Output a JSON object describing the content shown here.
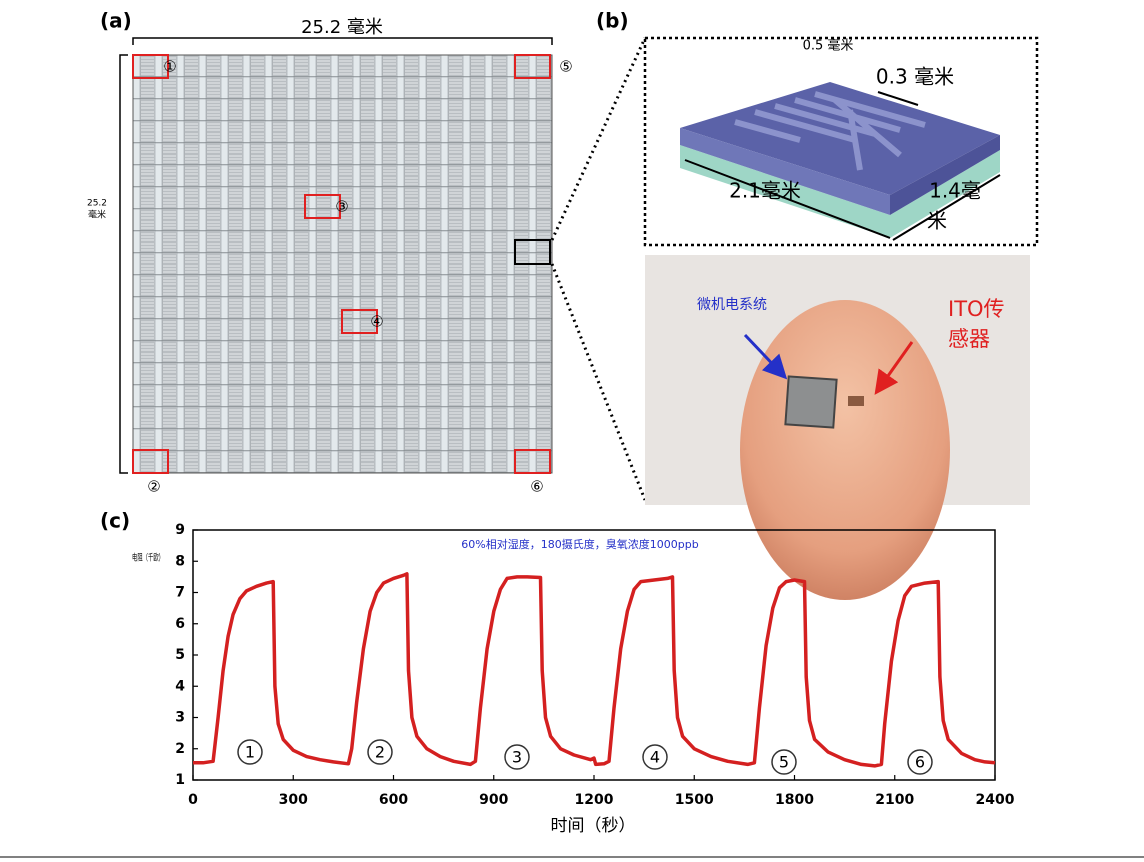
{
  "panel_a": {
    "label": "(a)",
    "width_label": "25.2 毫米",
    "height_label": [
      "25.2",
      "毫米"
    ],
    "markers": [
      "①",
      "②",
      "③",
      "④",
      "⑤",
      "⑥"
    ]
  },
  "panel_b": {
    "label": "(b)",
    "dims": [
      "0.5 毫米",
      "0.3 毫米",
      "2.1毫米"
    ],
    "depth_label": [
      "1.4毫",
      "米"
    ],
    "mems_label": "微机电系统",
    "ito_label": [
      "ITO传",
      "感器"
    ]
  },
  "chart_data": {
    "type": "line",
    "panel_label": "(c)",
    "title": "60%相对湿度，180摄氏度，臭氧浓度1000ppb",
    "y_label": "电阻（千欧）",
    "x_label": "时间（秒）",
    "xlim": [
      0,
      2400
    ],
    "xticks": [
      0,
      300,
      600,
      900,
      1200,
      1500,
      1800,
      2100,
      2400
    ],
    "ylim": [
      1,
      9
    ],
    "yticks": [
      1,
      2,
      3,
      4,
      5,
      6,
      7,
      8,
      9
    ],
    "annotations": [
      "1",
      "2",
      "3",
      "4",
      "5",
      "6"
    ],
    "series": [
      {
        "name": "电阻",
        "color": "#d42020",
        "x": [
          0,
          30,
          60,
          75,
          90,
          105,
          120,
          140,
          160,
          190,
          220,
          240,
          245,
          255,
          270,
          300,
          340,
          380,
          420,
          465,
          475,
          490,
          510,
          530,
          550,
          570,
          600,
          630,
          640,
          645,
          655,
          670,
          700,
          740,
          780,
          830,
          845,
          860,
          880,
          900,
          920,
          940,
          970,
          1000,
          1040,
          1045,
          1055,
          1070,
          1100,
          1140,
          1190,
          1200,
          1205,
          1230,
          1245,
          1260,
          1280,
          1300,
          1320,
          1340,
          1380,
          1420,
          1435,
          1440,
          1450,
          1465,
          1500,
          1550,
          1600,
          1660,
          1680,
          1695,
          1715,
          1735,
          1755,
          1775,
          1800,
          1830,
          1835,
          1845,
          1860,
          1900,
          1950,
          2000,
          2040,
          2060,
          2070,
          2090,
          2110,
          2130,
          2150,
          2190,
          2230,
          2235,
          2245,
          2260,
          2300,
          2340,
          2370,
          2400
        ],
        "values": [
          1.55,
          1.55,
          1.6,
          3.0,
          4.5,
          5.6,
          6.3,
          6.8,
          7.05,
          7.2,
          7.3,
          7.35,
          4.0,
          2.8,
          2.3,
          1.95,
          1.75,
          1.65,
          1.58,
          1.52,
          2.0,
          3.5,
          5.2,
          6.4,
          7.0,
          7.3,
          7.45,
          7.55,
          7.6,
          4.5,
          3.0,
          2.4,
          2.0,
          1.75,
          1.6,
          1.5,
          1.6,
          3.3,
          5.2,
          6.4,
          7.1,
          7.45,
          7.5,
          7.5,
          7.48,
          4.5,
          3.0,
          2.4,
          2.0,
          1.8,
          1.65,
          1.7,
          1.5,
          1.52,
          1.6,
          3.3,
          5.2,
          6.4,
          7.1,
          7.35,
          7.4,
          7.45,
          7.5,
          4.5,
          3.0,
          2.4,
          2.0,
          1.75,
          1.6,
          1.5,
          1.55,
          3.3,
          5.3,
          6.5,
          7.15,
          7.35,
          7.4,
          7.35,
          4.3,
          2.9,
          2.3,
          1.9,
          1.65,
          1.5,
          1.45,
          1.5,
          2.8,
          4.8,
          6.1,
          6.9,
          7.2,
          7.3,
          7.35,
          4.3,
          2.9,
          2.3,
          1.85,
          1.65,
          1.58,
          1.55
        ]
      }
    ]
  }
}
